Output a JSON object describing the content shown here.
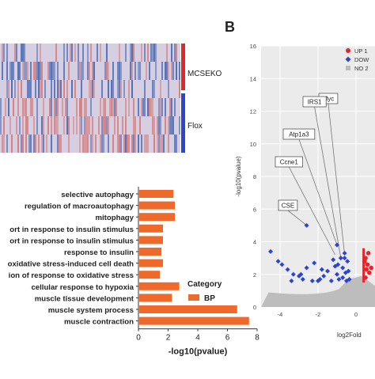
{
  "panel_label_b": "B",
  "heatmap": {
    "groups": [
      {
        "name": "MCSEKO",
        "color": "#e3262b"
      },
      {
        "name": "Flox",
        "color": "#2b44d6"
      }
    ],
    "colors": {
      "low": "#4f6fb8",
      "mid": "#d6cfe2",
      "high": "#d7807f"
    }
  },
  "chart_data": [
    {
      "type": "bar",
      "orientation": "horizontal",
      "categories": [
        "selective autophagy",
        "regulation of macroautophagy",
        "mitophagy",
        "ort in response to insulin stimulus",
        "ort in response to insulin stimulus",
        "response to insulin",
        "oxidative stress-induced cell death",
        "ion of response to oxidative stress",
        "cellular response to hypoxia",
        "muscle tissue development",
        "muscle system process",
        "muscle contraction"
      ],
      "values": [
        2.3,
        2.4,
        2.4,
        1.6,
        1.6,
        1.5,
        1.6,
        1.4,
        2.7,
        2.2,
        6.6,
        7.4
      ],
      "xlabel": "-log10(pvalue)",
      "xlim": [
        0,
        8
      ],
      "xticks": [
        "0",
        "2",
        "4",
        "6",
        "8"
      ],
      "bar_color": "#ef6a2a",
      "legend": {
        "title": "Category",
        "entries": [
          "BP"
        ],
        "placement": "right"
      }
    },
    {
      "type": "scatter",
      "xlabel": "log2Fold",
      "ylabel": "-log10(pvalue)",
      "xlim": [
        -5,
        1
      ],
      "ylim": [
        0,
        16
      ],
      "xticks": [
        "-4",
        "-2",
        "0"
      ],
      "yticks": [
        "0",
        "2",
        "4",
        "6",
        "8",
        "10",
        "12",
        "14",
        "16"
      ],
      "legend": {
        "placement": "top-right",
        "entries": [
          {
            "label": "UP 1",
            "color": "#e3262b",
            "shape": "circle"
          },
          {
            "label": "DOW",
            "color": "#2b44d6",
            "shape": "diamond"
          },
          {
            "label": "NO 2",
            "color": "#bdbdbd",
            "shape": "square"
          }
        ]
      },
      "series": [
        {
          "name": "DOW",
          "color": "#2b44d6",
          "points": [
            [
              -4.5,
              3.4
            ],
            [
              -4.1,
              2.8
            ],
            [
              -3.9,
              2.6
            ],
            [
              -3.6,
              2.3
            ],
            [
              -3.3,
              2.0
            ],
            [
              -3.0,
              1.9
            ],
            [
              -2.8,
              1.7
            ],
            [
              -2.6,
              2.4
            ],
            [
              -2.3,
              1.6
            ],
            [
              -2.0,
              1.6
            ],
            [
              -1.8,
              2.3
            ],
            [
              -1.7,
              1.9
            ],
            [
              -1.5,
              2.2
            ],
            [
              -1.3,
              1.6
            ],
            [
              -1.2,
              2.9
            ],
            [
              -1.1,
              2.5
            ],
            [
              -1.0,
              2.0
            ],
            [
              -0.9,
              1.7
            ],
            [
              -0.8,
              3.0
            ],
            [
              -0.7,
              2.4
            ],
            [
              -0.7,
              1.8
            ],
            [
              -0.6,
              3.3
            ],
            [
              -0.55,
              2.1
            ],
            [
              -0.5,
              1.6
            ],
            [
              -0.45,
              2.8
            ],
            [
              -0.4,
              2.2
            ],
            [
              -0.35,
              1.7
            ],
            [
              -3.4,
              1.6
            ],
            [
              -2.9,
              2.0
            ],
            [
              -2.2,
              2.7
            ],
            [
              -1.9,
              1.7
            ],
            [
              -0.95,
              2.6
            ],
            [
              -2.6,
              5.0
            ],
            [
              -1.0,
              3.8
            ],
            [
              -0.6,
              3.0
            ]
          ]
        },
        {
          "name": "UP 1",
          "color": "#e3262b",
          "points": [
            [
              0.45,
              2.8
            ],
            [
              0.5,
              3.0
            ],
            [
              0.55,
              2.3
            ],
            [
              0.6,
              2.6
            ],
            [
              0.5,
              1.8
            ],
            [
              0.7,
              2.1
            ],
            [
              0.65,
              3.3
            ],
            [
              0.8,
              2.4
            ]
          ]
        },
        {
          "name": "NO 2",
          "color": "#bdbdbd",
          "points": []
        }
      ],
      "labels": [
        {
          "text": "Myc",
          "x": -0.6,
          "y": 3.2
        },
        {
          "text": "IRS1",
          "x": -0.8,
          "y": 3.0
        },
        {
          "text": "Atp1a3",
          "x": -1.0,
          "y": 3.8
        },
        {
          "text": "Ccne1",
          "x": -1.1,
          "y": 3.2
        },
        {
          "text": "CSE",
          "x": -2.6,
          "y": 5.0
        }
      ]
    }
  ]
}
